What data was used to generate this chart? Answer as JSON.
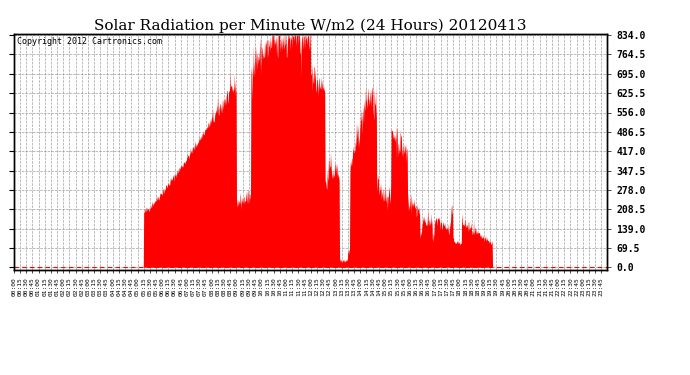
{
  "title": "Solar Radiation per Minute W/m2 (24 Hours) 20120413",
  "copyright_text": "Copyright 2012 Cartronics.com",
  "yticks": [
    0.0,
    69.5,
    139.0,
    208.5,
    278.0,
    347.5,
    417.0,
    486.5,
    556.0,
    625.5,
    695.0,
    764.5,
    834.0
  ],
  "ymax": 834.0,
  "ymin": 0.0,
  "fill_color": "#FF0000",
  "line_color": "#FF0000",
  "dashed_line_color": "#FF0000",
  "grid_color": "#888888",
  "background_color": "#FFFFFF",
  "title_fontsize": 11,
  "total_minutes": 1440
}
